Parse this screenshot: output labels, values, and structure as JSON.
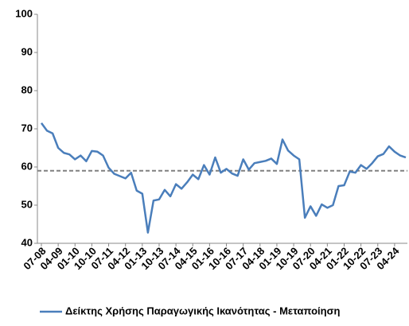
{
  "chart_data": {
    "type": "line",
    "categories": [
      "07-08",
      null,
      null,
      "04-09",
      null,
      null,
      "01-10",
      null,
      null,
      "10-10",
      null,
      null,
      "07-11",
      null,
      null,
      "04-12",
      null,
      null,
      "01-13",
      null,
      null,
      "10-13",
      null,
      null,
      "07-14",
      null,
      null,
      "04-15",
      null,
      null,
      "01-16",
      null,
      null,
      "10-16",
      null,
      null,
      "07-17",
      null,
      null,
      "04-18",
      null,
      null,
      "01-19",
      null,
      null,
      "10-19",
      null,
      null,
      "07-20",
      null,
      null,
      "04-21",
      null,
      null,
      "01-22",
      null,
      null,
      "10-22",
      null,
      null,
      "07-23",
      null,
      null,
      "04-24",
      null,
      null
    ],
    "series": [
      {
        "name": "Δείκτης Χρήσης Παραγωγικής Ικανότητας - Μεταποίηση",
        "color": "#4a7ebb",
        "values": [
          71.5,
          69.5,
          68.8,
          65,
          63.7,
          63.3,
          62,
          63,
          61.5,
          64.2,
          64,
          63,
          59.8,
          58.2,
          57.6,
          57,
          58.5,
          53.8,
          53,
          42.8,
          51.2,
          51.5,
          54,
          52.3,
          55.5,
          54.3,
          56,
          58,
          56.8,
          60.5,
          58,
          62.5,
          58.5,
          59.5,
          58.3,
          57.7,
          62,
          59.3,
          61,
          61.3,
          61.6,
          62.2,
          60.8,
          67.2,
          64.3,
          63,
          62,
          46.7,
          49.7,
          47.2,
          50.2,
          49.3,
          50,
          55,
          55.2,
          58.8,
          58.5,
          60.5,
          59.5,
          61,
          62.8,
          63.4,
          65.4,
          64,
          63,
          62.5
        ]
      }
    ],
    "reference_line": {
      "value": 59,
      "color": "#808080",
      "dashed": true
    },
    "ylim": [
      40,
      100
    ],
    "yticks": [
      40,
      50,
      60,
      70,
      80,
      90,
      100
    ],
    "grid": false,
    "legend": "bottom"
  }
}
